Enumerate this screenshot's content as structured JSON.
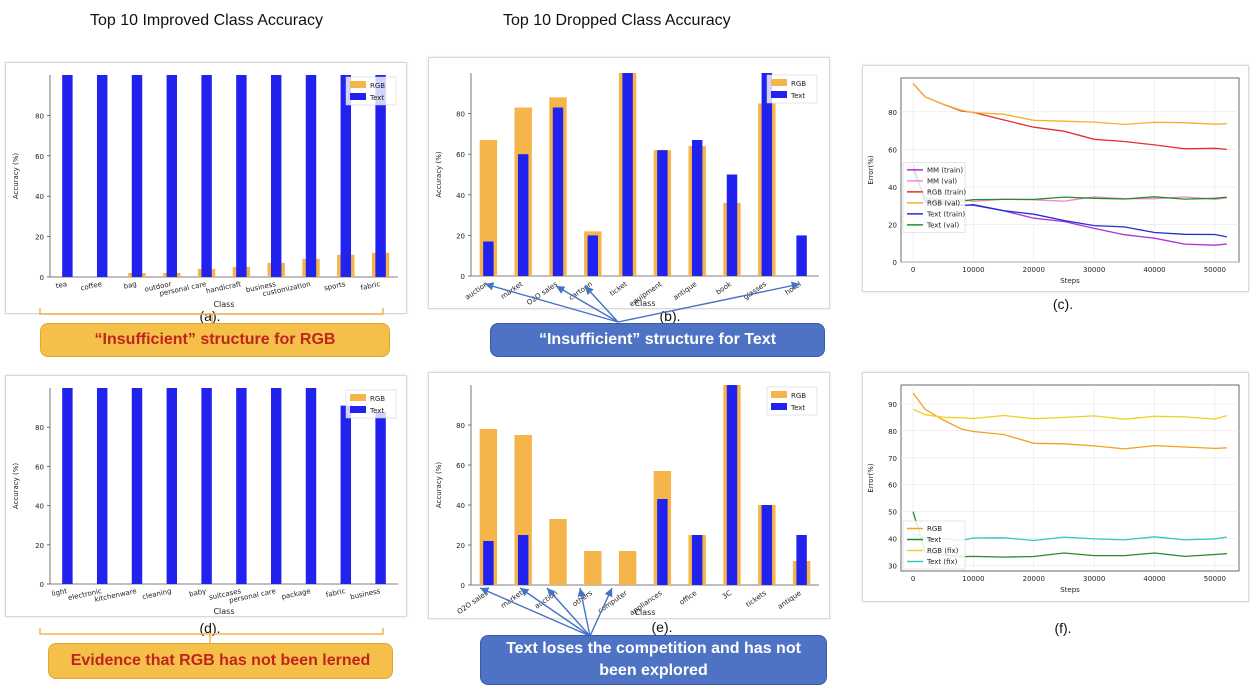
{
  "headings": {
    "left": "Top 10 Improved Class Accuracy",
    "middle": "Top 10 Dropped Class Accuracy"
  },
  "captions": {
    "a": "(a).",
    "b": "(b).",
    "c": "(c).",
    "d": "(d).",
    "e": "(e).",
    "f": "(f)."
  },
  "callouts": {
    "a": "“Insufficient”    structure for RGB",
    "b": "“Insufficient”    structure for Text",
    "d": "Evidence that RGB has not been lerned",
    "e": "Text loses the competition and has not been explored"
  },
  "colors": {
    "rgb": "#f5b54a",
    "text": "#2222ee",
    "callout_orange": "#f5c04a",
    "callout_blue": "#4f73c4"
  },
  "chart_data": [
    {
      "id": "a",
      "type": "bar",
      "xlabel": "Class",
      "ylabel": "Accuracy (%)",
      "ylim": [
        0,
        100
      ],
      "yticks": [
        0,
        20,
        40,
        60,
        80
      ],
      "legend": [
        "RGB",
        "Text"
      ],
      "legend_loc": "top-right",
      "categories": [
        "tea",
        "coffee",
        "bag",
        "outdoor",
        "personal care",
        "handicraft",
        "business",
        "customization",
        "sports",
        "fabric"
      ],
      "series": [
        {
          "name": "RGB",
          "values": [
            0,
            0,
            2,
            2,
            4,
            5,
            7,
            9,
            11,
            12
          ]
        },
        {
          "name": "Text",
          "values": [
            100,
            100,
            100,
            100,
            100,
            100,
            100,
            100,
            100,
            100
          ]
        }
      ]
    },
    {
      "id": "b",
      "type": "bar",
      "xlabel": "Class",
      "ylabel": "Accuracy (%)",
      "ylim": [
        0,
        100
      ],
      "yticks": [
        0,
        20,
        40,
        60,
        80
      ],
      "legend": [
        "RGB",
        "Text"
      ],
      "legend_loc": "top-right",
      "categories": [
        "auction",
        "market",
        "O2O sales",
        "cartoon",
        "ticket",
        "equipment",
        "antique",
        "book",
        "glasses",
        "hotel"
      ],
      "series": [
        {
          "name": "RGB",
          "values": [
            67,
            83,
            88,
            22,
            100,
            62,
            64,
            36,
            85,
            0
          ]
        },
        {
          "name": "Text",
          "values": [
            17,
            60,
            83,
            20,
            100,
            62,
            67,
            50,
            100,
            20
          ]
        }
      ]
    },
    {
      "id": "c",
      "type": "line",
      "xlabel": "Steps",
      "ylabel": "Error(%)",
      "xlim": [
        -2000,
        54000
      ],
      "ylim": [
        0,
        98
      ],
      "xticks": [
        0,
        10000,
        20000,
        30000,
        40000,
        50000
      ],
      "yticks": [
        0,
        20,
        40,
        60,
        80
      ],
      "legend_loc": "center-left",
      "x": [
        0,
        2000,
        5000,
        8000,
        10000,
        15000,
        20000,
        25000,
        30000,
        35000,
        40000,
        45000,
        50000,
        52000
      ],
      "series": [
        {
          "name": "MM (train)",
          "color": "#b030d0",
          "values": [
            50,
            33,
            32,
            31,
            30,
            27,
            24,
            21,
            18,
            15,
            12,
            10,
            9,
            9
          ]
        },
        {
          "name": "MM (val)",
          "color": "#f08ad0",
          "values": [
            48,
            34,
            33,
            33,
            33,
            33,
            33,
            33,
            34,
            34,
            34,
            34,
            34,
            34
          ]
        },
        {
          "name": "RGB (train)",
          "color": "#e53030",
          "values": [
            95,
            88,
            84,
            81,
            79,
            76,
            72,
            69,
            66,
            64,
            62,
            61,
            60,
            60
          ]
        },
        {
          "name": "RGB (val)",
          "color": "#f5b030",
          "values": [
            95,
            88,
            84,
            81,
            80,
            78,
            76,
            75,
            74,
            74,
            74,
            74,
            74,
            73
          ]
        },
        {
          "name": "Text (train)",
          "color": "#2030d0",
          "values": [
            52,
            32,
            31,
            30,
            30,
            28,
            25,
            22,
            20,
            18,
            16,
            15,
            14,
            14
          ]
        },
        {
          "name": "Text (val)",
          "color": "#2a8a2a",
          "values": [
            49,
            34,
            33,
            33,
            33,
            33,
            34,
            34,
            34,
            34,
            34,
            34,
            34,
            34
          ]
        }
      ]
    },
    {
      "id": "d",
      "type": "bar",
      "xlabel": "Class",
      "ylabel": "Accuracy (%)",
      "ylim": [
        0,
        100
      ],
      "yticks": [
        0,
        20,
        40,
        60,
        80
      ],
      "legend": [
        "RGB",
        "Text"
      ],
      "legend_loc": "top-right",
      "categories": [
        "light",
        "electronic",
        "kitchenware",
        "cleaning",
        "baby",
        "suitcases",
        "personal care",
        "package",
        "fabric",
        "business"
      ],
      "series": [
        {
          "name": "RGB",
          "values": [
            0,
            0,
            0,
            0,
            0,
            0,
            0,
            0,
            0,
            0
          ]
        },
        {
          "name": "Text",
          "values": [
            100,
            100,
            100,
            100,
            100,
            100,
            100,
            100,
            91,
            88
          ]
        }
      ]
    },
    {
      "id": "e",
      "type": "bar",
      "xlabel": "Class",
      "ylabel": "Accuracy (%)",
      "ylim": [
        0,
        100
      ],
      "yticks": [
        0,
        20,
        40,
        60,
        80
      ],
      "legend": [
        "RGB",
        "Text"
      ],
      "legend_loc": "top-right",
      "categories": [
        "O2O sales",
        "market",
        "auction",
        "others",
        "computer",
        "appliances",
        "office",
        "3C",
        "tickets",
        "antique"
      ],
      "series": [
        {
          "name": "RGB",
          "values": [
            78,
            75,
            33,
            17,
            17,
            57,
            25,
            100,
            40,
            12
          ]
        },
        {
          "name": "Text",
          "values": [
            22,
            25,
            0,
            0,
            0,
            43,
            25,
            100,
            40,
            25
          ]
        }
      ]
    },
    {
      "id": "f",
      "type": "line",
      "xlabel": "Steps",
      "ylabel": "Error(%)",
      "xlim": [
        -2000,
        54000
      ],
      "ylim": [
        28,
        97
      ],
      "xticks": [
        0,
        10000,
        20000,
        30000,
        40000,
        50000
      ],
      "yticks": [
        30,
        40,
        50,
        60,
        70,
        80,
        90
      ],
      "legend_loc": "lower-left",
      "x": [
        0,
        2000,
        5000,
        8000,
        10000,
        15000,
        20000,
        25000,
        30000,
        35000,
        40000,
        45000,
        50000,
        52000
      ],
      "series": [
        {
          "name": "RGB",
          "color": "#f5a020",
          "values": [
            94,
            88,
            84,
            81,
            80,
            78,
            76,
            75,
            74,
            74,
            74,
            74,
            74,
            73
          ]
        },
        {
          "name": "Text",
          "color": "#2a8a2a",
          "values": [
            50,
            35,
            34,
            34,
            33,
            33,
            34,
            34,
            34,
            34,
            34,
            34,
            34,
            34
          ]
        },
        {
          "name": "RGB (fix)",
          "color": "#f0d020",
          "values": [
            88,
            86,
            85,
            85,
            85,
            85,
            85,
            85,
            85,
            85,
            85,
            85,
            85,
            85
          ]
        },
        {
          "name": "Text (fix)",
          "color": "#30c8c8",
          "values": [
            42,
            40,
            40,
            40,
            40,
            40,
            40,
            40,
            40,
            40,
            40,
            40,
            40,
            40
          ]
        }
      ]
    }
  ]
}
